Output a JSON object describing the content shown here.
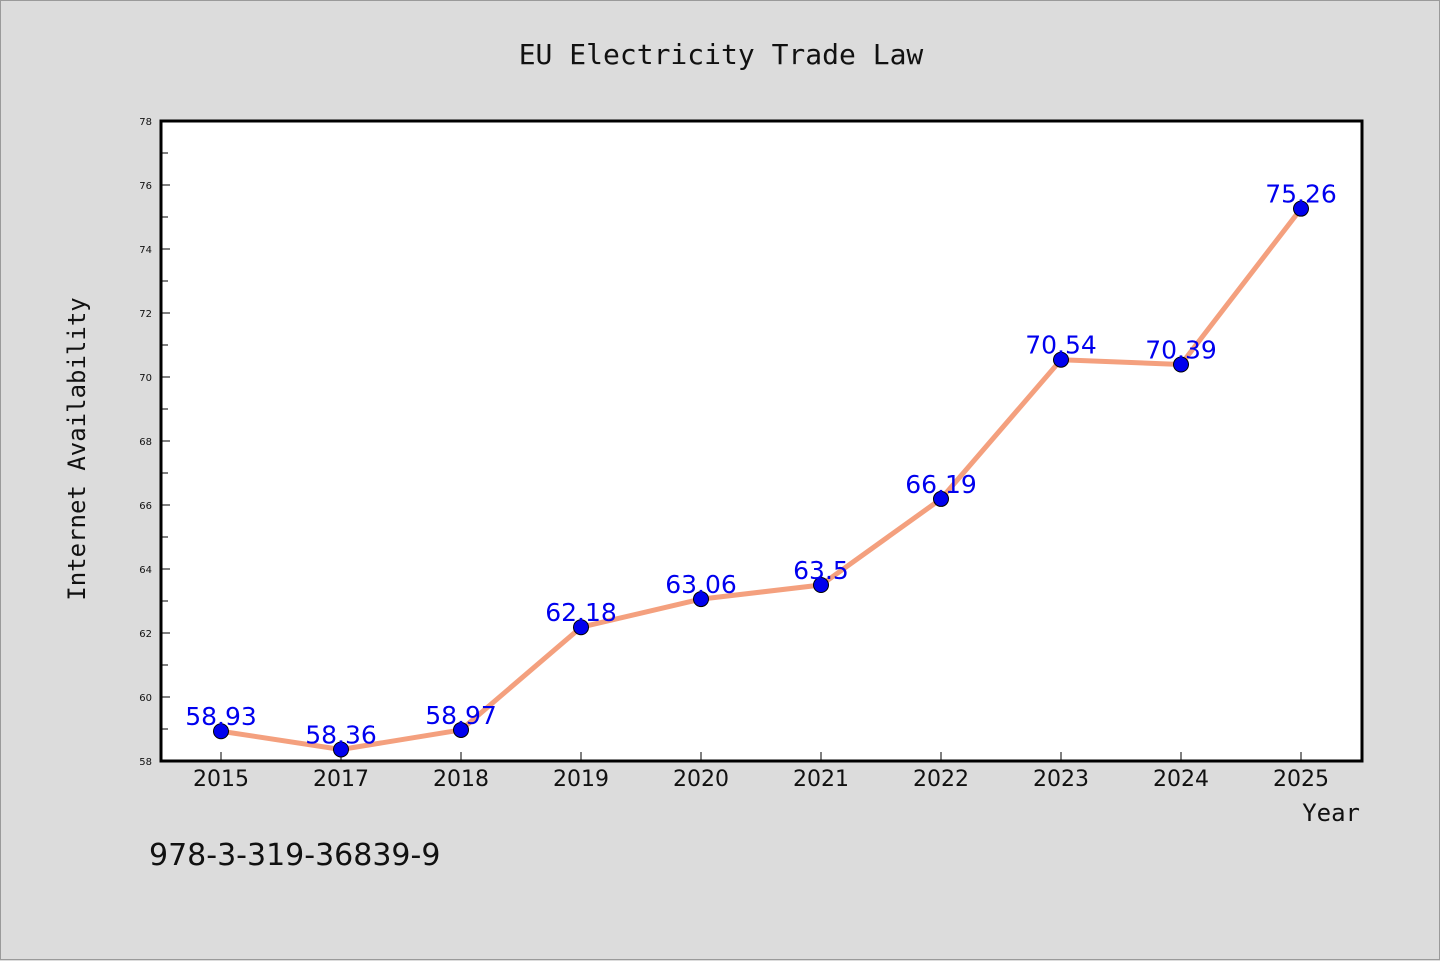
{
  "chart_data": {
    "type": "line",
    "title": "EU Electricity Trade Law",
    "xlabel": "Year",
    "ylabel": "Internet Availability",
    "categories": [
      "2015",
      "2017",
      "2018",
      "2019",
      "2020",
      "2021",
      "2022",
      "2023",
      "2024",
      "2025"
    ],
    "series": [
      {
        "values": [
          58.93,
          58.36,
          58.97,
          62.18,
          63.06,
          63.5,
          66.19,
          70.54,
          70.39,
          75.26
        ],
        "labels": [
          "58.93",
          "58.36",
          "58.97",
          "62.18",
          "63.06",
          "63.5",
          "66.19",
          "70.54",
          "70.39",
          "75.26"
        ],
        "line_color": "#f4a07e",
        "marker_color": "#0000ee"
      }
    ],
    "ylim": [
      58,
      78
    ],
    "yticks": [
      "58",
      "60",
      "62",
      "64",
      "66",
      "68",
      "70",
      "72",
      "74",
      "76",
      "78"
    ],
    "grid": false,
    "legend": "none"
  },
  "footer": {
    "isbn": "978-3-319-36839-9"
  }
}
